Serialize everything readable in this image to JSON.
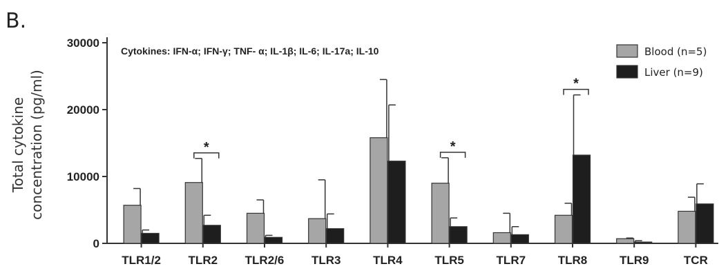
{
  "panel_label": "B.",
  "annotation": "Cytokines: IFN-α; IFN-γ; TNF- α; IL-1β; IL-6; IL-17a; IL-10",
  "colors": {
    "blood": "#a6a6a6",
    "liver": "#1e1e1e"
  },
  "chart_data": {
    "type": "bar",
    "ylabel_lines": [
      "Total cytokine",
      "concentration (pg/ml)"
    ],
    "xlabel": "",
    "ylim": [
      0,
      30000
    ],
    "yticks": [
      0,
      10000,
      20000,
      30000
    ],
    "categories": [
      "TLR1/2",
      "TLR2",
      "TLR2/6",
      "TLR3",
      "TLR4",
      "TLR5",
      "TLR7",
      "TLR8",
      "TLR9",
      "TCR"
    ],
    "legend_position": "top-right",
    "grid": false,
    "series": [
      {
        "name": "Blood (n=5)",
        "values": [
          5700,
          9100,
          4500,
          3700,
          15800,
          9000,
          1600,
          4200,
          700,
          4800
        ],
        "error": [
          2500,
          3600,
          2000,
          5800,
          8700,
          3800,
          2900,
          1800,
          100,
          2100
        ]
      },
      {
        "name": "Liver (n=9)",
        "values": [
          1500,
          2700,
          900,
          2200,
          12300,
          2500,
          1300,
          13200,
          200,
          5900
        ],
        "error": [
          500,
          1500,
          300,
          2200,
          8400,
          1300,
          1200,
          9000,
          200,
          3000
        ]
      }
    ],
    "significance": [
      {
        "category": "TLR2",
        "label": "*"
      },
      {
        "category": "TLR5",
        "label": "*"
      },
      {
        "category": "TLR8",
        "label": "*"
      }
    ]
  }
}
